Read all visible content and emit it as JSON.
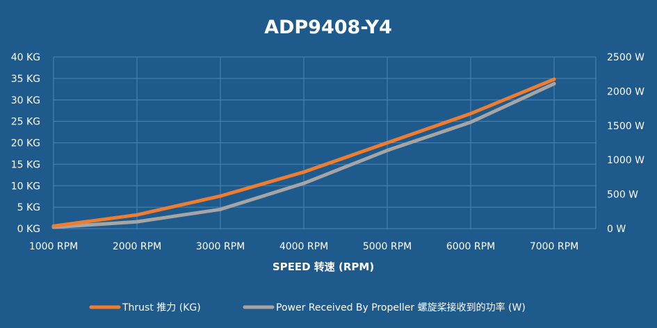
{
  "chart_data": {
    "type": "line",
    "title": "ADP9408-Y4",
    "xlabel": "SPEED 转速 (RPM)",
    "categories": [
      "1000 RPM",
      "2000 RPM",
      "3000 RPM",
      "4000 RPM",
      "5000 RPM",
      "6000 RPM",
      "7000 RPM"
    ],
    "y_left": {
      "ticks": [
        "0 KG",
        "5 KG",
        "10 KG",
        "15 KG",
        "20 KG",
        "25 KG",
        "30 KG",
        "35 KG",
        "40 KG"
      ],
      "ylim": [
        0,
        40
      ]
    },
    "y_right": {
      "ticks": [
        "0 W",
        "500 W",
        "1000 W",
        "1500 W",
        "2000 W",
        "2500 W"
      ],
      "ylim": [
        0,
        2500
      ]
    },
    "series": [
      {
        "name": "Thrust 推力 (KG)",
        "axis": "left",
        "color": "#ed7d31",
        "values": [
          0.6,
          3.2,
          7.6,
          13.2,
          20.0,
          26.8,
          34.8
        ]
      },
      {
        "name": "Power Received By Propeller 螺旋桨接收到的功率 (W)",
        "axis": "right",
        "color": "#a5a5a5",
        "values": [
          20,
          100,
          280,
          660,
          1140,
          1550,
          2110
        ]
      }
    ],
    "grid": true,
    "legend_position": "bottom"
  }
}
